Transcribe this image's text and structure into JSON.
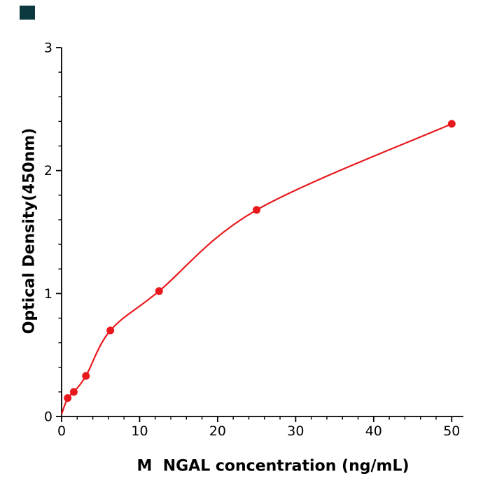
{
  "figure": {
    "background": "#ffffff",
    "corner_mark_color": "#0c3940"
  },
  "chart_data": {
    "type": "scatter",
    "title": "",
    "xlabel": "M  NGAL concentration (ng/mL)",
    "ylabel": "Optical Density(450nm)",
    "x": [
      0.78,
      1.56,
      3.125,
      6.25,
      12.5,
      25,
      50
    ],
    "y": [
      0.15,
      0.2,
      0.33,
      0.7,
      1.02,
      1.68,
      2.38
    ],
    "curve_start": [
      0,
      0.02
    ],
    "xlim": [
      0,
      51.5
    ],
    "ylim": [
      0,
      3
    ],
    "x_major_ticks": [
      0,
      10,
      20,
      30,
      40,
      50
    ],
    "x_minor_step": 2,
    "y_major_ticks": [
      0,
      1,
      2,
      3
    ],
    "y_minor_step": 0.2,
    "point_color": "#e8191d",
    "line_color": "#e8191d",
    "axis_color": "#000000",
    "tick_label_color": "#000000",
    "grid": false,
    "legend": null
  }
}
